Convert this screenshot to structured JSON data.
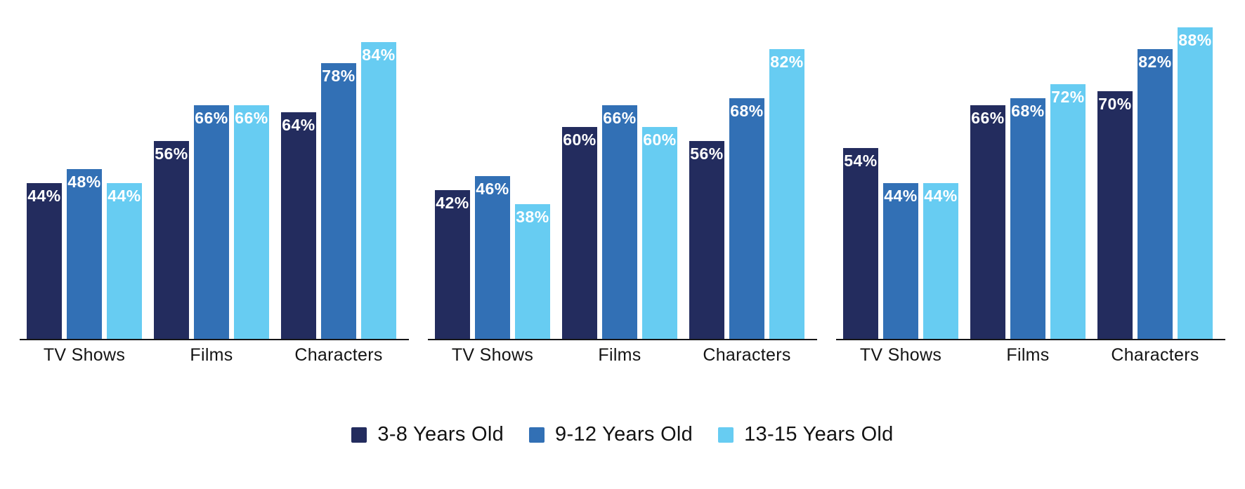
{
  "page": {
    "background": "#ffffff"
  },
  "colors": {
    "series_navy": "#232C5E",
    "series_blue": "#3270B5",
    "series_light_blue": "#67CCF2",
    "axis_line": "#161618",
    "category_text": "#141414",
    "legend_text": "#121212",
    "value_text": "#ffffff"
  },
  "legend": {
    "items": [
      {
        "label": "3-8 Years Old",
        "color": "#232C5E"
      },
      {
        "label": "9-12 Years Old",
        "color": "#3270B5"
      },
      {
        "label": "13-15 Years Old",
        "color": "#67CCF2"
      }
    ]
  },
  "chart_data": [
    {
      "type": "bar",
      "title": "",
      "categories": [
        "TV Shows",
        "Films",
        "Characters"
      ],
      "series": [
        {
          "name": "3-8 Years Old",
          "color": "#232C5E",
          "values": [
            44,
            56,
            64
          ]
        },
        {
          "name": "9-12 Years Old",
          "color": "#3270B5",
          "values": [
            48,
            66,
            78
          ]
        },
        {
          "name": "13-15 Years Old",
          "color": "#67CCF2",
          "values": [
            44,
            66,
            84
          ]
        }
      ],
      "value_suffix": "%",
      "xlabel": "",
      "ylabel": "",
      "ylim": [
        0,
        100
      ],
      "grid": false,
      "value_labels": "inside-top",
      "legend_position": "bottom-shared"
    },
    {
      "type": "bar",
      "title": "",
      "categories": [
        "TV Shows",
        "Films",
        "Characters"
      ],
      "series": [
        {
          "name": "3-8 Years Old",
          "color": "#232C5E",
          "values": [
            42,
            60,
            56
          ]
        },
        {
          "name": "9-12 Years Old",
          "color": "#3270B5",
          "values": [
            46,
            66,
            68
          ]
        },
        {
          "name": "13-15 Years Old",
          "color": "#67CCF2",
          "values": [
            38,
            60,
            82
          ]
        }
      ],
      "value_suffix": "%",
      "xlabel": "",
      "ylabel": "",
      "ylim": [
        0,
        100
      ],
      "grid": false,
      "value_labels": "inside-top",
      "legend_position": "bottom-shared"
    },
    {
      "type": "bar",
      "title": "",
      "categories": [
        "TV Shows",
        "Films",
        "Characters"
      ],
      "series": [
        {
          "name": "3-8 Years Old",
          "color": "#232C5E",
          "values": [
            54,
            66,
            70
          ]
        },
        {
          "name": "9-12 Years Old",
          "color": "#3270B5",
          "values": [
            44,
            68,
            82
          ]
        },
        {
          "name": "13-15 Years Old",
          "color": "#67CCF2",
          "values": [
            44,
            72,
            88
          ]
        }
      ],
      "value_suffix": "%",
      "xlabel": "",
      "ylabel": "",
      "ylim": [
        0,
        100
      ],
      "grid": false,
      "value_labels": "inside-top",
      "legend_position": "bottom-shared"
    }
  ]
}
